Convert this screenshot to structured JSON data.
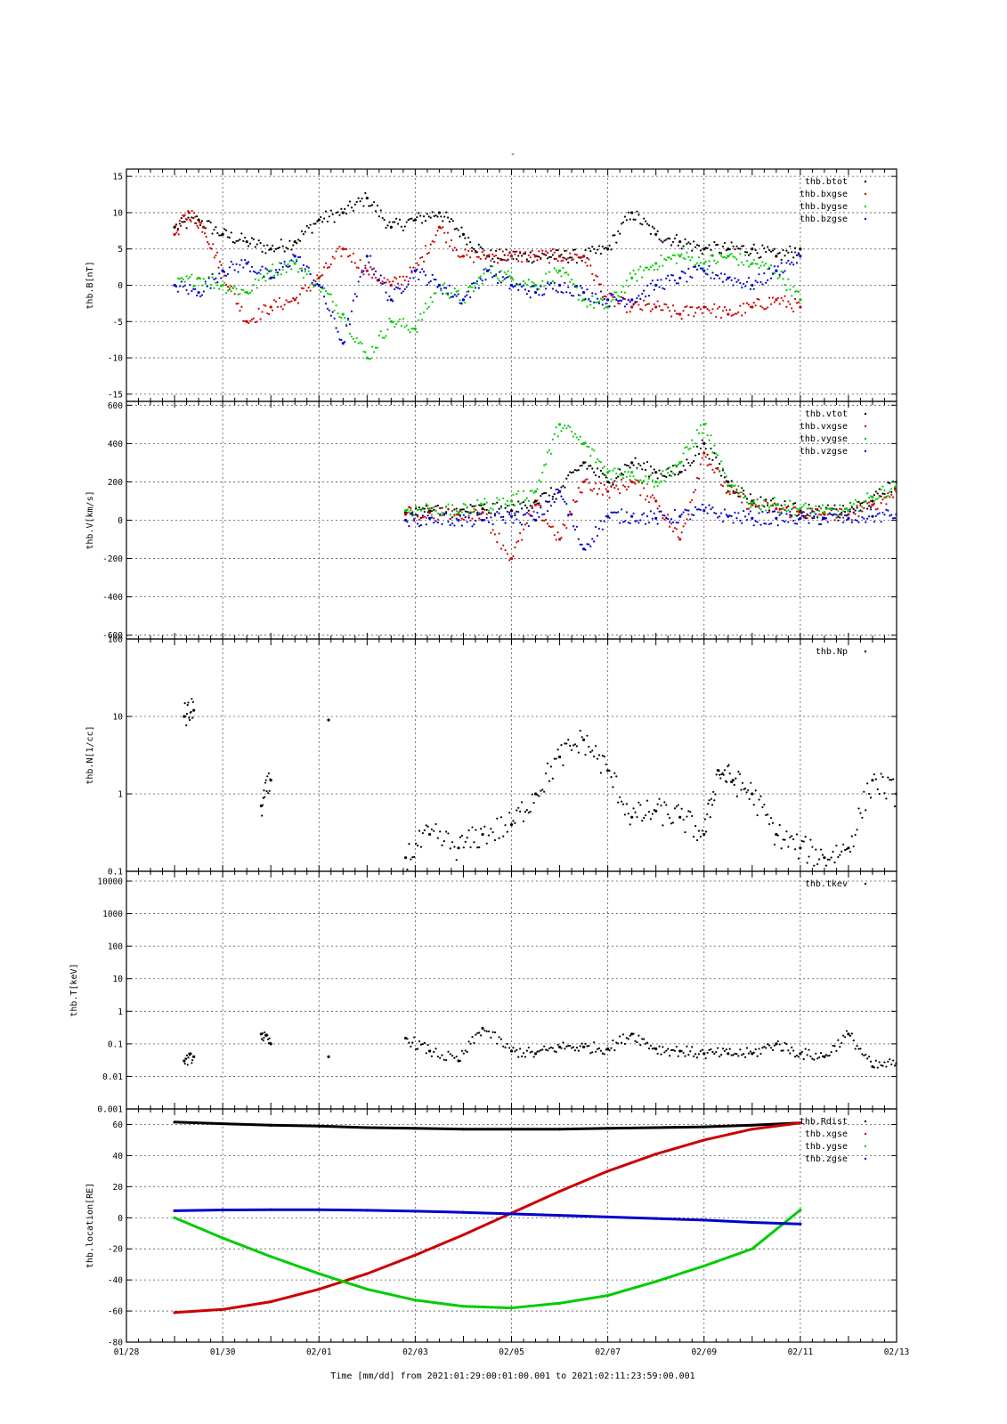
{
  "figure": {
    "title": "-",
    "xaxis_title": "Time [mm/dd]  from 2021:01:29:00:01:00.001  to  2021:02:11:23:59:00.001",
    "x_tick_labels": [
      "01/28",
      "01/30",
      "02/01",
      "02/03",
      "02/05",
      "02/07",
      "02/09",
      "02/11",
      "02/13"
    ]
  },
  "colors": {
    "black": "#000000",
    "red": "#cc0000",
    "green": "#00cc00",
    "blue": "#0000cc",
    "grid": "#555555"
  },
  "chart_data": [
    {
      "type": "scatter",
      "ylabel": "thb.B[nT]",
      "ylim": [
        -16,
        16
      ],
      "yscale": "linear",
      "yticks": [
        -15,
        -10,
        -5,
        0,
        5,
        10,
        15
      ],
      "xlim_days": [
        0,
        16
      ],
      "x_unit": "days since 01/28 00:00",
      "grid": true,
      "legend_position": "top-right",
      "series": [
        {
          "name": "thb.btot",
          "color": "#000000",
          "x": [
            1.0,
            1.5,
            2.0,
            2.5,
            3.0,
            3.5,
            4.0,
            4.5,
            5.0,
            5.5,
            6.0,
            6.5,
            7.0,
            7.5,
            8.0,
            8.5,
            9.0,
            9.5,
            10.0,
            10.5,
            11.0,
            11.5,
            12.0,
            12.5,
            13.0,
            13.5,
            14.0
          ],
          "y": [
            8,
            9,
            7,
            6,
            5,
            6,
            9,
            10,
            12,
            8,
            9,
            10,
            7,
            4,
            4,
            4,
            4,
            4,
            5,
            10,
            7,
            6,
            5,
            5,
            5,
            4,
            5
          ]
        },
        {
          "name": "thb.bxgse",
          "color": "#cc0000",
          "x": [
            1.0,
            1.3,
            1.6,
            2.0,
            2.5,
            3.0,
            3.5,
            4.0,
            4.5,
            5.0,
            5.5,
            6.0,
            6.5,
            7.0,
            7.5,
            8.0,
            8.5,
            9.0,
            9.5,
            10.0,
            10.5,
            11.0,
            11.5,
            12.0,
            12.5,
            13.0,
            13.5,
            14.0
          ],
          "y": [
            7,
            10,
            8,
            2,
            -5,
            -3,
            -2,
            1,
            5,
            2,
            0,
            2,
            8,
            4,
            4,
            4,
            4,
            4,
            4,
            -2,
            -3,
            -3,
            -4,
            -3,
            -4,
            -3,
            -2,
            -3
          ]
        },
        {
          "name": "thb.bygse",
          "color": "#00cc00",
          "x": [
            1.0,
            1.5,
            2.0,
            2.5,
            3.0,
            3.5,
            4.0,
            4.5,
            5.0,
            5.5,
            6.0,
            6.5,
            7.0,
            7.5,
            8.0,
            8.5,
            9.0,
            9.5,
            10.0,
            10.5,
            11.0,
            11.5,
            12.0,
            12.5,
            13.0,
            13.5,
            14.0
          ],
          "y": [
            0,
            1,
            0,
            -1,
            2,
            3,
            0,
            -4,
            -10,
            -5,
            -6,
            0,
            -2,
            2,
            1,
            0,
            2,
            -2,
            -3,
            1,
            3,
            4,
            3,
            4,
            3,
            2,
            -2
          ]
        },
        {
          "name": "thb.bzgse",
          "color": "#0000cc",
          "x": [
            1.0,
            1.5,
            2.0,
            2.5,
            3.0,
            3.5,
            4.0,
            4.5,
            5.0,
            5.5,
            6.0,
            6.5,
            7.0,
            7.5,
            8.0,
            8.5,
            9.0,
            9.5,
            10.0,
            10.5,
            11.0,
            11.5,
            12.0,
            12.5,
            13.0,
            13.5,
            14.0
          ],
          "y": [
            0,
            -1,
            2,
            3,
            1,
            4,
            0,
            -8,
            4,
            -2,
            2,
            0,
            -2,
            2,
            0,
            -1,
            0,
            -1,
            -2,
            -2,
            0,
            1,
            2,
            1,
            0,
            2,
            4
          ]
        }
      ]
    },
    {
      "type": "scatter",
      "ylabel": "thb.V[km/s]",
      "ylim": [
        -620,
        620
      ],
      "yscale": "linear",
      "yticks": [
        -600,
        -400,
        -200,
        0,
        200,
        400,
        600
      ],
      "xlim_days": [
        0,
        16
      ],
      "grid": true,
      "legend_position": "top-right",
      "series": [
        {
          "name": "thb.vtot",
          "color": "#000000",
          "x": [
            5.8,
            6.3,
            6.9,
            7.4,
            8.0,
            8.5,
            9.0,
            9.5,
            10.0,
            10.5,
            11.0,
            11.5,
            12.0,
            12.5,
            13.0,
            13.5,
            14.0,
            14.5,
            15.0,
            15.5,
            16.0
          ],
          "y": [
            40,
            50,
            40,
            60,
            50,
            100,
            150,
            300,
            200,
            300,
            250,
            250,
            400,
            200,
            100,
            80,
            50,
            40,
            50,
            100,
            200
          ]
        },
        {
          "name": "thb.vxgse",
          "color": "#cc0000",
          "x": [
            5.8,
            6.3,
            6.9,
            7.4,
            8.0,
            8.5,
            9.0,
            9.5,
            10.0,
            10.5,
            11.0,
            11.5,
            12.0,
            12.5,
            13.0,
            13.5,
            14.0,
            14.5,
            15.0,
            15.5,
            16.0
          ],
          "y": [
            30,
            40,
            30,
            40,
            -200,
            80,
            -100,
            200,
            150,
            200,
            100,
            -100,
            350,
            150,
            80,
            60,
            40,
            30,
            30,
            80,
            150
          ]
        },
        {
          "name": "thb.vygse",
          "color": "#00cc00",
          "x": [
            5.8,
            6.3,
            6.9,
            7.4,
            8.0,
            8.5,
            9.0,
            9.5,
            10.0,
            10.5,
            11.0,
            11.5,
            12.0,
            12.5,
            13.0,
            13.5,
            14.0,
            14.5,
            15.0,
            15.5,
            16.0
          ],
          "y": [
            50,
            60,
            40,
            80,
            100,
            150,
            500,
            400,
            250,
            250,
            200,
            300,
            500,
            180,
            90,
            80,
            60,
            40,
            50,
            120,
            180
          ]
        },
        {
          "name": "thb.vzgse",
          "color": "#0000cc",
          "x": [
            5.8,
            6.3,
            6.9,
            7.4,
            8.0,
            8.5,
            9.0,
            9.5,
            10.0,
            10.5,
            11.0,
            11.5,
            12.0,
            12.5,
            13.0,
            13.5,
            14.0,
            14.5,
            15.0,
            15.5,
            16.0
          ],
          "y": [
            0,
            10,
            0,
            0,
            20,
            0,
            150,
            -150,
            20,
            20,
            10,
            20,
            50,
            20,
            10,
            10,
            10,
            10,
            10,
            20,
            30
          ]
        }
      ]
    },
    {
      "type": "scatter",
      "ylabel": "thb.N[1/cc]",
      "ylim": [
        0.1,
        100
      ],
      "yscale": "log",
      "yticks": [
        0.1,
        1,
        10,
        100
      ],
      "ytick_labels": [
        "0.1",
        "1",
        "10",
        "100"
      ],
      "xlim_days": [
        0,
        16
      ],
      "grid": true,
      "legend_position": "top-right",
      "series": [
        {
          "name": "thb.Np",
          "color": "#000000",
          "x": [
            1.2,
            1.4,
            2.8,
            3.0,
            4.2,
            5.8,
            6.3,
            6.9,
            7.4,
            8.0,
            8.5,
            9.0,
            9.5,
            10.0,
            10.5,
            11.0,
            11.5,
            12.0,
            12.3,
            12.6,
            13.0,
            13.5,
            14.0,
            14.5,
            15.0,
            15.5,
            16.0
          ],
          "y": [
            10,
            12,
            0.7,
            1.5,
            9,
            0.15,
            0.3,
            0.2,
            0.3,
            0.4,
            1.0,
            3.0,
            5.0,
            2.0,
            0.5,
            0.6,
            0.5,
            0.3,
            2.0,
            1.5,
            1.0,
            0.3,
            0.2,
            0.15,
            0.2,
            1.5,
            1.0
          ]
        }
      ]
    },
    {
      "type": "scatter",
      "ylabel": "thb.T[keV]",
      "ylim": [
        0.001,
        20000
      ],
      "yscale": "log",
      "yticks": [
        0.001,
        0.01,
        0.1,
        1,
        10,
        100,
        1000,
        10000
      ],
      "ytick_labels": [
        "0.001",
        "0.01",
        "0.1",
        "1",
        "10",
        "100",
        "1000",
        "10000"
      ],
      "xlim_days": [
        0,
        16
      ],
      "grid": true,
      "legend_position": "top-right",
      "series": [
        {
          "name": "thb.tkev",
          "color": "#000000",
          "x": [
            1.2,
            1.4,
            2.8,
            3.0,
            4.2,
            5.8,
            6.3,
            6.9,
            7.4,
            8.0,
            8.5,
            9.0,
            9.5,
            10.0,
            10.5,
            11.0,
            11.5,
            12.0,
            12.5,
            13.0,
            13.5,
            14.0,
            14.5,
            15.0,
            15.5,
            16.0
          ],
          "y": [
            0.03,
            0.04,
            0.2,
            0.1,
            0.04,
            0.15,
            0.06,
            0.03,
            0.3,
            0.06,
            0.05,
            0.08,
            0.08,
            0.07,
            0.2,
            0.07,
            0.06,
            0.05,
            0.05,
            0.05,
            0.1,
            0.05,
            0.04,
            0.2,
            0.02,
            0.025
          ]
        }
      ]
    },
    {
      "type": "line",
      "ylabel": "thb.location[RE]",
      "ylim": [
        -80,
        70
      ],
      "yscale": "linear",
      "yticks": [
        -80,
        -60,
        -40,
        -20,
        0,
        20,
        40,
        60
      ],
      "xlim_days": [
        0,
        16
      ],
      "grid": true,
      "legend_position": "top-right",
      "series": [
        {
          "name": "thb.Rdist",
          "color": "#000000",
          "x": [
            1.0,
            2.0,
            3.0,
            4.0,
            5.0,
            6.0,
            7.0,
            8.0,
            9.0,
            10.0,
            11.0,
            12.0,
            13.0,
            14.0
          ],
          "y": [
            61.5,
            60.5,
            59.5,
            59,
            58,
            57.5,
            57,
            57,
            57,
            57.5,
            58,
            58.5,
            59.5,
            61
          ]
        },
        {
          "name": "thb.xgse",
          "color": "#cc0000",
          "x": [
            1.0,
            2.0,
            3.0,
            4.0,
            5.0,
            6.0,
            7.0,
            8.0,
            9.0,
            10.0,
            11.0,
            12.0,
            13.0,
            14.0
          ],
          "y": [
            -61,
            -59,
            -54,
            -46,
            -36,
            -24,
            -11,
            3,
            17,
            30,
            41,
            50,
            57,
            61
          ]
        },
        {
          "name": "thb.ygse",
          "color": "#00cc00",
          "x": [
            1.0,
            2.0,
            3.0,
            4.0,
            5.0,
            6.0,
            7.0,
            8.0,
            9.0,
            10.0,
            11.0,
            12.0,
            13.0,
            14.0
          ],
          "y": [
            0,
            -13,
            -25,
            -36,
            -46,
            -53,
            -57,
            -58,
            -55,
            -50,
            -41,
            -31,
            -20,
            5
          ]
        },
        {
          "name": "thb.zgse",
          "color": "#0000cc",
          "x": [
            1.0,
            2.0,
            3.0,
            4.0,
            5.0,
            6.0,
            7.0,
            8.0,
            9.0,
            10.0,
            11.0,
            12.0,
            13.0,
            14.0
          ],
          "y": [
            4.5,
            5,
            5.2,
            5.2,
            4.8,
            4.2,
            3.5,
            2.5,
            1.5,
            0.5,
            -0.5,
            -1.5,
            -3,
            -4
          ]
        }
      ]
    }
  ]
}
